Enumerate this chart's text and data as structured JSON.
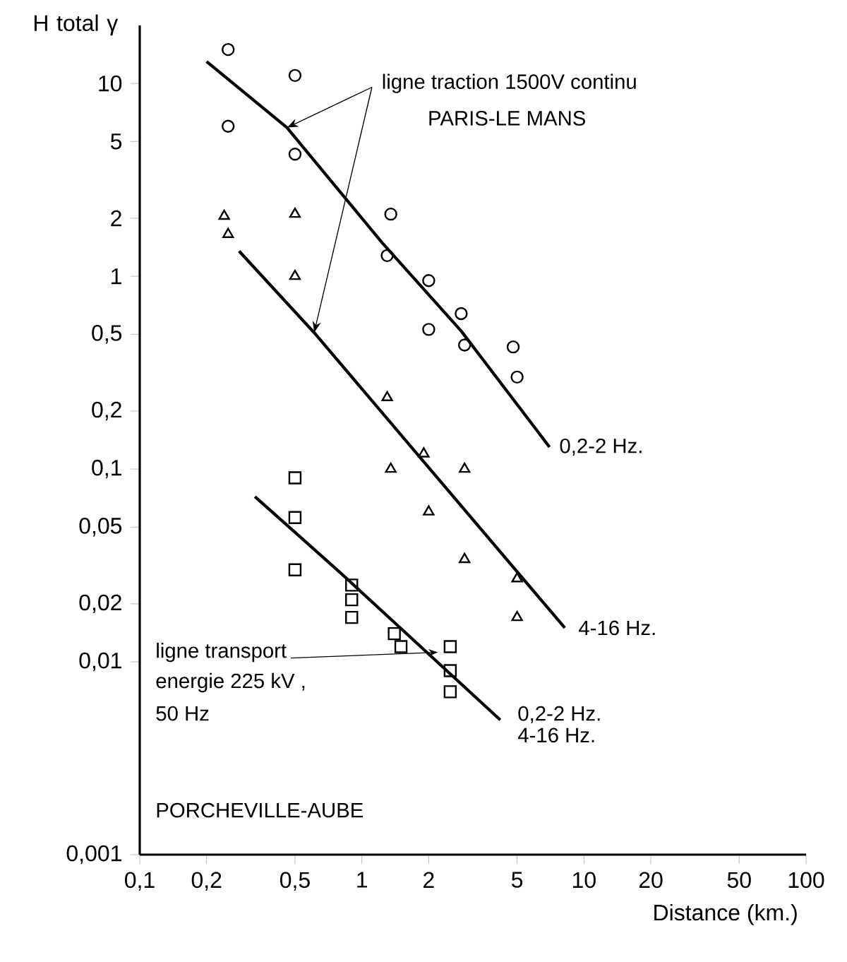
{
  "chart_data": {
    "type": "scatter",
    "xlabel": "Distance (km.)",
    "ylabel": "H total γ",
    "log": "xy",
    "xlim": [
      0.1,
      100
    ],
    "ylim": [
      0.001,
      20
    ],
    "xticks": [
      {
        "value": 0.1,
        "label": "0,1"
      },
      {
        "value": 0.2,
        "label": "0,2"
      },
      {
        "value": 0.5,
        "label": "0,5"
      },
      1,
      2,
      5,
      10,
      20,
      50,
      100
    ],
    "yticks": [
      {
        "value": 0.001,
        "label": "0,001"
      },
      {
        "value": 0.01,
        "label": "0,01"
      },
      {
        "value": 0.02,
        "label": "0,02"
      },
      {
        "value": 0.05,
        "label": "0,05"
      },
      {
        "value": 0.1,
        "label": "0,1"
      },
      {
        "value": 0.2,
        "label": "0,2"
      },
      {
        "value": 0.5,
        "label": "0,5"
      },
      1,
      2,
      5,
      10
    ],
    "grid": false,
    "series": [
      {
        "marker": "circle",
        "color": "#000000",
        "x": [
          0.25,
          0.5,
          0.25,
          0.5,
          1.35,
          1.3,
          2,
          2.8,
          2,
          2.9,
          4.8,
          5
        ],
        "values": [
          15,
          11,
          6,
          4.3,
          2.1,
          1.28,
          0.95,
          0.64,
          0.53,
          0.44,
          0.43,
          0.3
        ]
      },
      {
        "marker": "triangle",
        "color": "#000000",
        "x": [
          0.24,
          0.5,
          0.25,
          0.5,
          1.3,
          1.9,
          1.35,
          2.9,
          2,
          2.9,
          5,
          5
        ],
        "values": [
          2.05,
          2.1,
          1.65,
          1,
          0.235,
          0.12,
          0.1,
          0.1,
          0.06,
          0.034,
          0.027,
          0.017
        ]
      },
      {
        "marker": "square",
        "color": "#000000",
        "x": [
          0.5,
          0.5,
          0.5,
          0.9,
          0.9,
          0.9,
          1.4,
          1.5,
          2.5,
          2.5,
          2.5
        ],
        "values": [
          0.09,
          0.056,
          0.03,
          0.025,
          0.021,
          0.017,
          0.014,
          0.012,
          0.012,
          0.009,
          0.007
        ]
      },
      {
        "type": "line",
        "marker": "none",
        "color": "#000000",
        "x": [
          0.2,
          0.46,
          1.23,
          2.8,
          7
        ],
        "values": [
          13,
          5.9,
          1.5,
          0.52,
          0.13
        ]
      },
      {
        "type": "line",
        "marker": "none",
        "color": "#000000",
        "x": [
          0.28,
          0.61,
          8.2
        ],
        "values": [
          1.35,
          0.51,
          0.015
        ]
      },
      {
        "type": "line",
        "marker": "none",
        "color": "#000000",
        "x": [
          0.33,
          0.8,
          4.2
        ],
        "values": [
          0.072,
          0.029,
          0.005
        ]
      }
    ],
    "annotations": [
      {
        "text": "ligne traction 1500V continu",
        "x": 0.46,
        "y": 5.9
      },
      "PARIS-LE MANS",
      "0,2-2 Hz.",
      "4-16 Hz.",
      {
        "text": "ligne transport",
        "x": 2.2,
        "y": 0.0112
      },
      "energie 225 kV ,",
      "50 Hz",
      "0,2-2 Hz.",
      "4-16 Hz.",
      "PORCHEVILLE-AUBE"
    ]
  }
}
